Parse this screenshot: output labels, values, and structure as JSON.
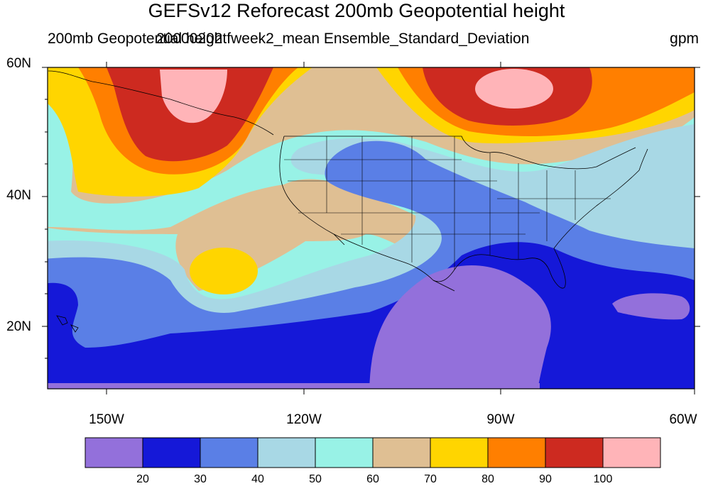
{
  "header": {
    "title": "GEFSv12 Reforecast 200mb Geopotential height",
    "left_string": "200mb Geopotential height",
    "center_string": "20000202 fweek2_mean Ensemble_Standard_Deviation",
    "right_string": "gpm"
  },
  "axes": {
    "lat_labels": [
      "60N",
      "40N",
      "20N"
    ],
    "lon_labels": [
      "150W",
      "120W",
      "90W",
      "60W"
    ]
  },
  "colorbar": {
    "labels": [
      "20",
      "30",
      "40",
      "50",
      "60",
      "70",
      "80",
      "90",
      "100"
    ],
    "colors": [
      "#9370DB",
      "#1518D8",
      "#5A7FE6",
      "#A8D8E5",
      "#98F2E6",
      "#DFBF93",
      "#FFD500",
      "#FF7F00",
      "#CD2A20",
      "#FFB4B8"
    ]
  }
}
